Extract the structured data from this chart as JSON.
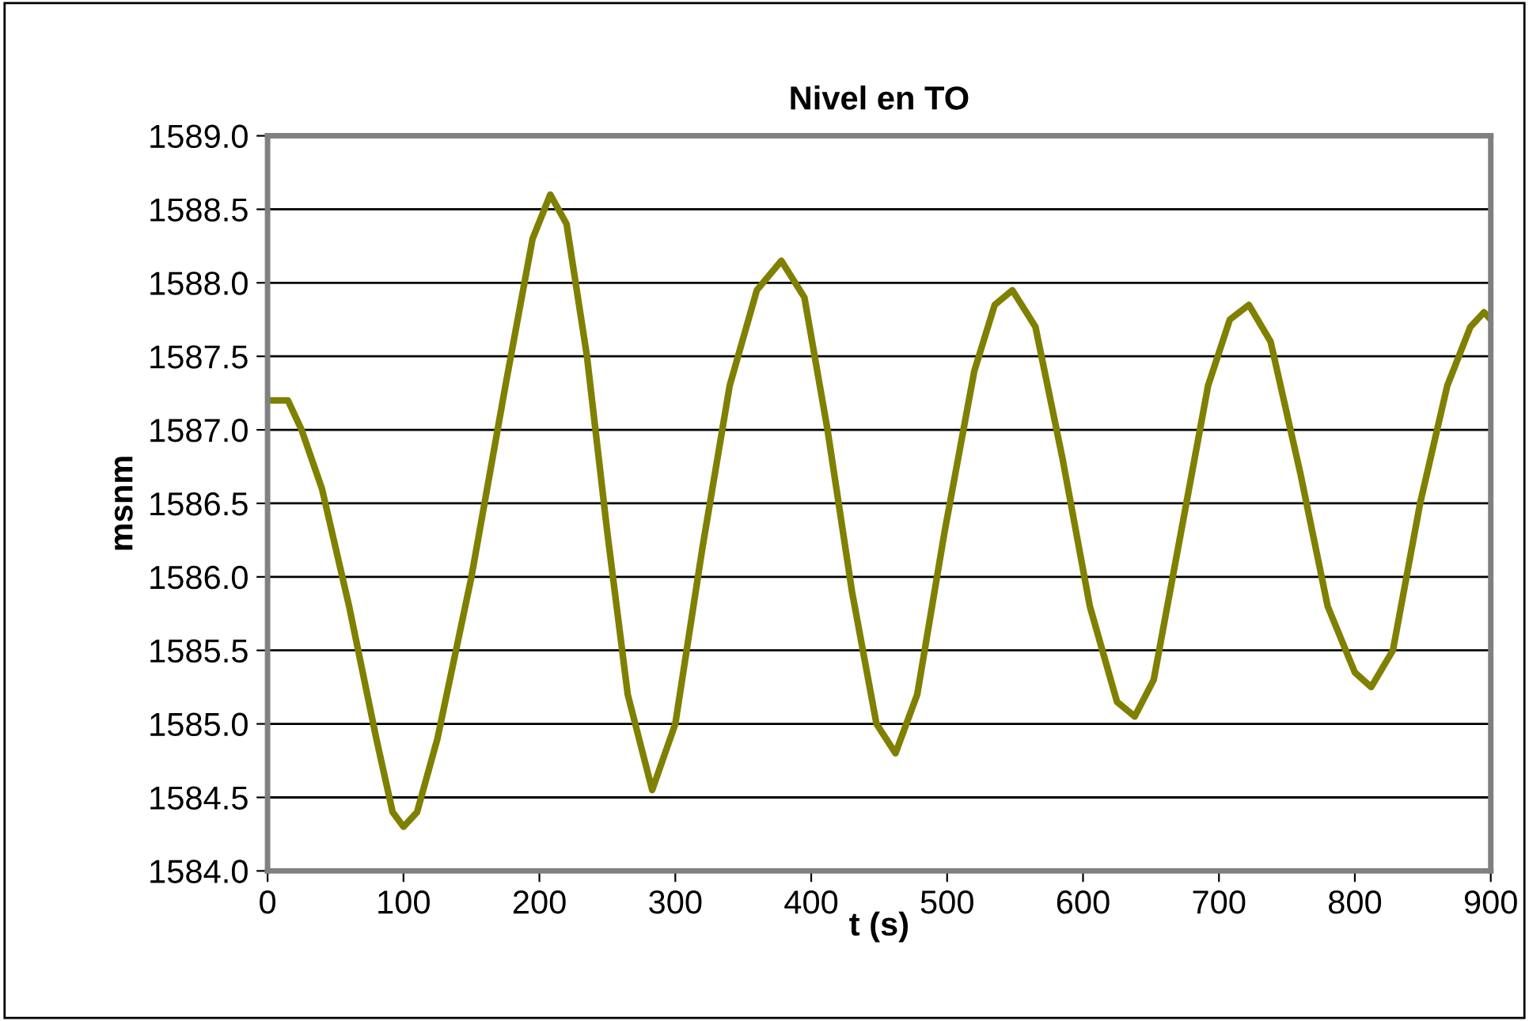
{
  "chart_data": {
    "type": "line",
    "title": "Nivel en TO",
    "xlabel": "t (s)",
    "ylabel": "msnm",
    "xlim": [
      0,
      900
    ],
    "xticks": [
      0,
      100,
      200,
      300,
      400,
      500,
      600,
      700,
      800,
      900
    ],
    "ylim": [
      1584.0,
      1589.0
    ],
    "yticks": [
      {
        "value": 1584.0,
        "label": "1584.0"
      },
      {
        "value": 1584.5,
        "label": "1584.5"
      },
      {
        "value": 1585.0,
        "label": "1585.0"
      },
      {
        "value": 1585.5,
        "label": "1585.5"
      },
      {
        "value": 1586.0,
        "label": "1586.0"
      },
      {
        "value": 1586.5,
        "label": "1586.5"
      },
      {
        "value": 1587.0,
        "label": "1587.0"
      },
      {
        "value": 1587.5,
        "label": "1587.5"
      },
      {
        "value": 1588.0,
        "label": "1588.0"
      },
      {
        "value": 1588.5,
        "label": "1588.5"
      },
      {
        "value": 1589.0,
        "label": "1589.0"
      }
    ],
    "grid": "y",
    "legend": false,
    "marker": "none",
    "line_style": "solid",
    "series": [
      {
        "color": "#808000",
        "x": [
          0,
          15,
          25,
          40,
          60,
          80,
          92,
          100,
          110,
          125,
          150,
          175,
          195,
          208,
          220,
          235,
          250,
          265,
          283,
          300,
          320,
          340,
          360,
          378,
          395,
          412,
          430,
          448,
          462,
          478,
          498,
          520,
          535,
          548,
          565,
          585,
          605,
          625,
          638,
          652,
          672,
          692,
          708,
          722,
          738,
          760,
          780,
          800,
          812,
          828,
          848,
          868,
          885,
          895,
          900
        ],
        "values": [
          1587.2,
          1587.2,
          1587.0,
          1586.6,
          1585.8,
          1584.9,
          1584.4,
          1584.3,
          1584.4,
          1584.9,
          1586.0,
          1587.3,
          1588.3,
          1588.6,
          1588.4,
          1587.5,
          1586.3,
          1585.2,
          1584.55,
          1585.0,
          1586.2,
          1587.3,
          1587.95,
          1588.15,
          1587.9,
          1587.0,
          1585.9,
          1585.0,
          1584.8,
          1585.2,
          1586.3,
          1587.4,
          1587.85,
          1587.95,
          1587.7,
          1586.8,
          1585.8,
          1585.15,
          1585.05,
          1585.3,
          1586.3,
          1587.3,
          1587.75,
          1587.85,
          1587.6,
          1586.7,
          1585.8,
          1585.35,
          1585.25,
          1585.5,
          1586.5,
          1587.3,
          1587.7,
          1587.8,
          1587.75
        ]
      }
    ]
  }
}
